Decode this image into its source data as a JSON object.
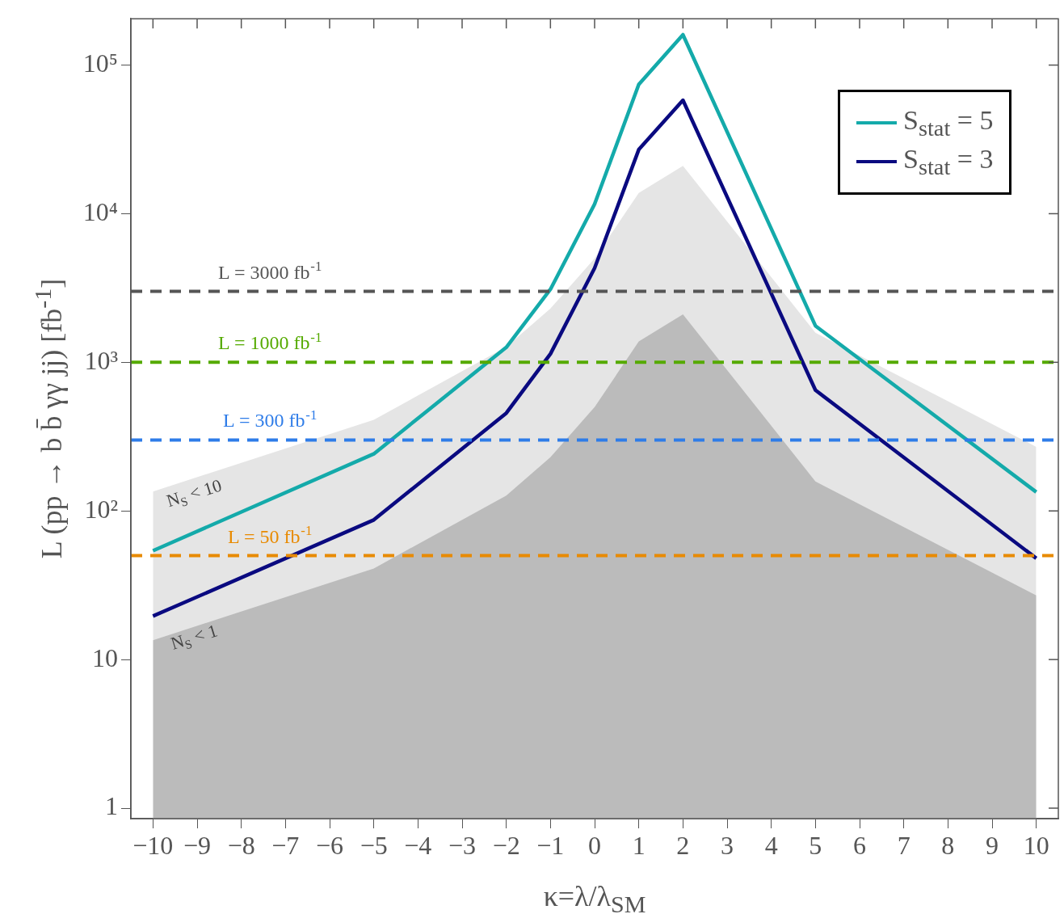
{
  "chart_data": {
    "type": "line",
    "xlabel": "κ=λ/λ$_{SM}$",
    "ylabel": "L (pp → b b̄ γγ jj) [fb$^{-1}$]",
    "x": [
      -10,
      -5,
      -2,
      -1,
      0,
      1,
      2,
      5,
      10
    ],
    "series": [
      {
        "type": "area",
        "color": "#e5e5e5",
        "values": [
          135,
          410,
          1270,
          2300,
          5000,
          13800,
          21000,
          1580,
          270
        ]
      },
      {
        "type": "area",
        "color": "#bbbbbb",
        "values": [
          13.5,
          41,
          127,
          230,
          500,
          1380,
          2100,
          158,
          27
        ]
      },
      {
        "name": "S$_{stat}$ = 5",
        "color": "#14aaaa",
        "values": [
          54,
          242,
          1260,
          3100,
          11600,
          74000,
          160000,
          1760,
          134
        ]
      },
      {
        "name": "S$_{stat}$ = 3",
        "color": "#0a0a80",
        "values": [
          19.6,
          87,
          455,
          1140,
          4300,
          27000,
          58000,
          650,
          48
        ]
      }
    ],
    "ref_lines": [
      {
        "axis": "y",
        "value": 3000,
        "label": "L = 3000 fb$^{-1}$",
        "color": "#555555",
        "line_style": "dashed"
      },
      {
        "axis": "y",
        "value": 1000,
        "label": "L = 1000 fb$^{-1}$",
        "color": "#55aa00",
        "line_style": "dashed"
      },
      {
        "axis": "y",
        "value": 300,
        "label": "L = 300 fb$^{-1}$",
        "color": "#2e7ce8",
        "line_style": "dashed"
      },
      {
        "axis": "y",
        "value": 50,
        "label": "L = 50 fb$^{-1}$",
        "color": "#e88a00",
        "line_style": "dashed"
      }
    ],
    "annotations": [
      "N$_{S}$ < 10",
      "N$_{S}$ < 1"
    ],
    "log": "y",
    "xlim": [
      -10.5,
      10.5
    ],
    "xticks": [
      {
        "value": -10,
        "label": "−10"
      },
      {
        "value": -9,
        "label": "−9"
      },
      {
        "value": -8,
        "label": "−8"
      },
      {
        "value": -7,
        "label": "−7"
      },
      {
        "value": -6,
        "label": "−6"
      },
      {
        "value": -5,
        "label": "−5"
      },
      {
        "value": -4,
        "label": "−4"
      },
      {
        "value": -3,
        "label": "−3"
      },
      {
        "value": -2,
        "label": "−2"
      },
      {
        "value": -1,
        "label": "−1"
      },
      0,
      1,
      2,
      3,
      4,
      5,
      6,
      7,
      8,
      9,
      10
    ],
    "ylim": [
      0.85,
      205000
    ],
    "yticks": [
      1,
      10,
      {
        "value": 100,
        "label": "10²"
      },
      {
        "value": 1000,
        "label": "10³"
      },
      {
        "value": 10000,
        "label": "10⁴"
      },
      {
        "value": 100000,
        "label": "10⁵"
      }
    ],
    "legend": "top right",
    "grid": false,
    "marker": "none",
    "line_style": "solid"
  }
}
